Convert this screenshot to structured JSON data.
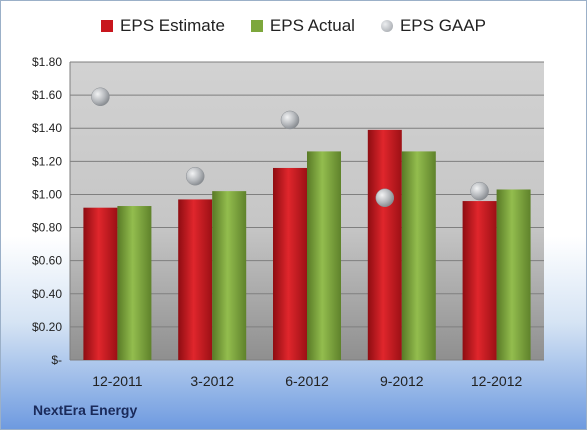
{
  "company": "NextEra Energy",
  "colors": {
    "estimate": "#c8161d",
    "actual": "#7da73c",
    "gaap": "#b9bcc1"
  },
  "chart_data": {
    "type": "bar",
    "categories": [
      "12-2011",
      "3-2012",
      "6-2012",
      "9-2012",
      "12-2012"
    ],
    "series": [
      {
        "name": "EPS Estimate",
        "values": [
          0.92,
          0.97,
          1.16,
          1.39,
          0.96
        ]
      },
      {
        "name": "EPS Actual",
        "values": [
          0.93,
          1.02,
          1.26,
          1.26,
          1.03
        ]
      },
      {
        "name": "EPS GAAP",
        "values": [
          1.59,
          1.11,
          1.45,
          0.98,
          1.02
        ],
        "marker": "circle"
      }
    ],
    "ylim": [
      0,
      1.8
    ],
    "yticks": [
      0,
      0.2,
      0.4,
      0.6,
      0.8,
      1.0,
      1.2,
      1.4,
      1.6,
      1.8
    ],
    "ytick_labels": [
      "$-",
      "$0.20",
      "$0.40",
      "$0.60",
      "$0.80",
      "$1.00",
      "$1.20",
      "$1.40",
      "$1.60",
      "$1.80"
    ],
    "grid": true,
    "legend": "top"
  }
}
